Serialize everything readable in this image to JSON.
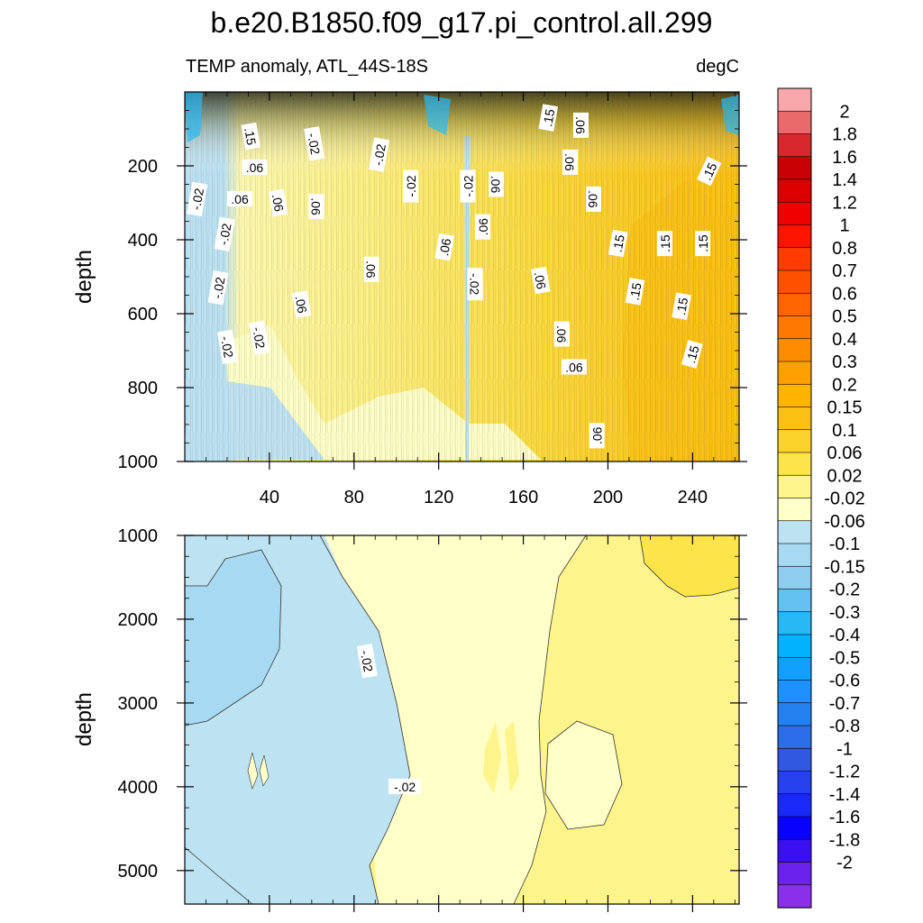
{
  "chart_data": {
    "type": "heatmap",
    "title": "b.e20.B1850.f09_g17.pi_control.all.299",
    "subtitle_left": "TEMP anomaly, ATL_44S-18S",
    "subtitle_right": "degC",
    "xlim": [
      0,
      262
    ],
    "x_ticks": [
      "40",
      "80",
      "120",
      "160",
      "200",
      "240"
    ],
    "x_tick_values": [
      40,
      80,
      120,
      160,
      200,
      240
    ],
    "panels": [
      {
        "name": "upper",
        "ylabel": "depth",
        "ylim": [
          0,
          1000
        ],
        "y_ticks": [
          "200",
          "400",
          "600",
          "800",
          "1000"
        ],
        "y_tick_values": [
          200,
          400,
          600,
          800,
          1000
        ],
        "contour_labels": [
          {
            "text": ".15",
            "x": 31,
            "y": 120,
            "rot": 80
          },
          {
            "text": ".06",
            "x": 33,
            "y": 205,
            "rot": 0
          },
          {
            "text": "-.02",
            "x": 6,
            "y": 290,
            "rot": -80
          },
          {
            "text": ".06",
            "x": 26,
            "y": 290,
            "rot": 0
          },
          {
            "text": ".06",
            "x": 44,
            "y": 300,
            "rot": 80
          },
          {
            "text": "-.02",
            "x": 61,
            "y": 140,
            "rot": 80
          },
          {
            "text": ".06",
            "x": 62,
            "y": 310,
            "rot": 90
          },
          {
            "text": "-.02",
            "x": 92,
            "y": 170,
            "rot": -80
          },
          {
            "text": "-.02",
            "x": 107,
            "y": 255,
            "rot": -90
          },
          {
            "text": "-.02",
            "x": 134,
            "y": 255,
            "rot": -90
          },
          {
            "text": ".06",
            "x": 147,
            "y": 250,
            "rot": 90
          },
          {
            "text": ".06",
            "x": 141,
            "y": 365,
            "rot": -90
          },
          {
            "text": ".06",
            "x": 88,
            "y": 480,
            "rot": 90
          },
          {
            "text": ".06",
            "x": 123,
            "y": 420,
            "rot": -80
          },
          {
            "text": "-.02",
            "x": 137,
            "y": 520,
            "rot": 90
          },
          {
            "text": "-.02",
            "x": 19,
            "y": 385,
            "rot": -80
          },
          {
            "text": "-.02",
            "x": 16,
            "y": 530,
            "rot": -80
          },
          {
            "text": ".06",
            "x": 55,
            "y": 575,
            "rot": 80
          },
          {
            "text": "-.02",
            "x": 20,
            "y": 690,
            "rot": 80
          },
          {
            "text": "-.02",
            "x": 35,
            "y": 665,
            "rot": 80
          },
          {
            "text": ".15",
            "x": 172,
            "y": 70,
            "rot": -80
          },
          {
            "text": ".06",
            "x": 187,
            "y": 90,
            "rot": 90
          },
          {
            "text": ".06",
            "x": 182,
            "y": 190,
            "rot": 90
          },
          {
            "text": ".06",
            "x": 193,
            "y": 290,
            "rot": 90
          },
          {
            "text": ".06",
            "x": 168,
            "y": 510,
            "rot": 80
          },
          {
            "text": ".06",
            "x": 178,
            "y": 655,
            "rot": 90
          },
          {
            "text": ".06",
            "x": 184,
            "y": 745,
            "rot": 0
          },
          {
            "text": ".06",
            "x": 195,
            "y": 930,
            "rot": -90
          },
          {
            "text": ".15",
            "x": 205,
            "y": 410,
            "rot": -80
          },
          {
            "text": ".15",
            "x": 213,
            "y": 540,
            "rot": -80
          },
          {
            "text": ".15",
            "x": 227,
            "y": 410,
            "rot": -90
          },
          {
            "text": ".15",
            "x": 245,
            "y": 410,
            "rot": -90
          },
          {
            "text": ".15",
            "x": 235,
            "y": 580,
            "rot": -80
          },
          {
            "text": ".15",
            "x": 240,
            "y": 710,
            "rot": -75
          },
          {
            "text": ".15",
            "x": 248,
            "y": 215,
            "rot": -65
          }
        ]
      },
      {
        "name": "lower",
        "ylabel": "depth",
        "ylim": [
          1000,
          5400
        ],
        "y_ticks": [
          "1000",
          "2000",
          "3000",
          "4000",
          "5000"
        ],
        "y_tick_values": [
          1000,
          2000,
          3000,
          4000,
          5000
        ],
        "contour_labels": [
          {
            "text": "-.02",
            "x": 86,
            "y": 2500,
            "rot": 80
          },
          {
            "text": "-.02",
            "x": 104,
            "y": 4000,
            "rot": 0
          }
        ]
      }
    ],
    "colorbar": {
      "labels": [
        "2",
        "1.8",
        "1.6",
        "1.4",
        "1.2",
        "1",
        "0.8",
        "0.7",
        "0.6",
        "0.5",
        "0.4",
        "0.3",
        "0.2",
        "0.15",
        "0.1",
        "0.06",
        "0.02",
        "-0.02",
        "-0.06",
        "-0.1",
        "-0.15",
        "-0.2",
        "-0.3",
        "-0.4",
        "-0.5",
        "-0.6",
        "-0.7",
        "-0.8",
        "-1",
        "-1.2",
        "-1.4",
        "-1.6",
        "-1.8",
        "-2"
      ],
      "colors": [
        "#f8a8ab",
        "#ea6a6c",
        "#d8282c",
        "#c80004",
        "#dc0000",
        "#f00000",
        "#ff1400",
        "#ff3c00",
        "#ff5000",
        "#ff6400",
        "#ff7800",
        "#ff8c00",
        "#ffa000",
        "#ffb400",
        "#fcc010",
        "#fcd32a",
        "#fde44a",
        "#fdf48c",
        "#ffffc8",
        "#bde3f3",
        "#a7daf2",
        "#8fcdef",
        "#64c0f0",
        "#28b9f5",
        "#00b2ff",
        "#12a0ff",
        "#1e90ff",
        "#2580f0",
        "#2b6ee8",
        "#3158e0",
        "#2642ee",
        "#1a28f8",
        "#0a00ff",
        "#3a10f0",
        "#6a22ec",
        "#8a30ea"
      ]
    }
  }
}
